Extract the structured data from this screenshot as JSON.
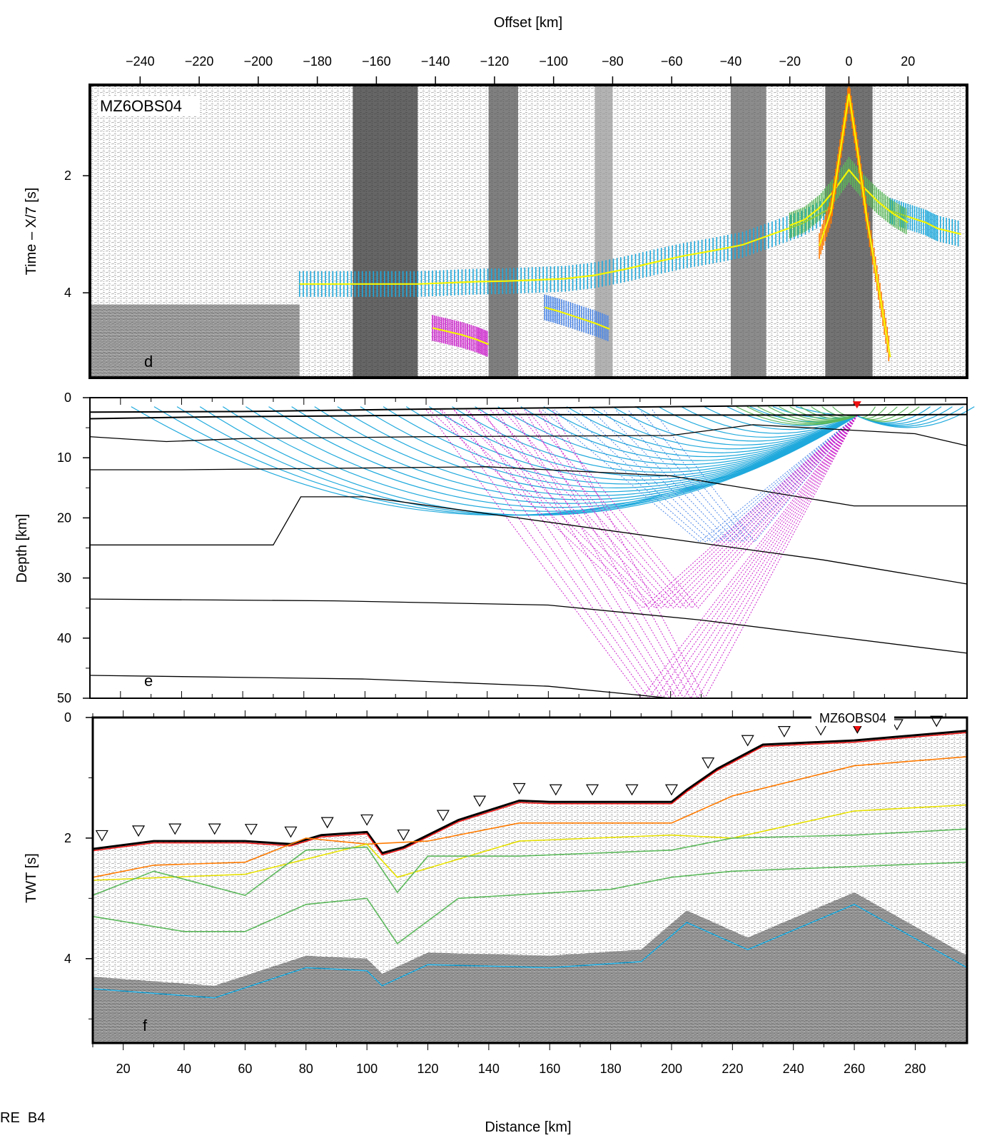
{
  "figure_label": "RE  B4",
  "colors": {
    "frame": "#000000",
    "cyan_rays": "#1fa9dc",
    "blue_rays": "#4a86e8",
    "magenta_rays": "#cc22cc",
    "green_rays": "#5cb85c",
    "pick_yellow": "#f5f500",
    "red_marker": "#ee1111"
  },
  "chart_data": [
    {
      "panel": "d",
      "type": "scatter",
      "station": "MZ6OBS04",
      "xlabel": "Offset [km]",
      "ylabel": "Time – X/7 [s]",
      "xlim": [
        -257,
        40
      ],
      "ylim": [
        5.45,
        0.45
      ],
      "xticks": [
        -240,
        -220,
        -200,
        -180,
        -160,
        -140,
        -120,
        -100,
        -80,
        -60,
        -40,
        -20,
        0,
        20
      ],
      "yticks": [
        2,
        4
      ],
      "series": [
        {
          "color": "cyan",
          "x": [
            -186,
            -176,
            -166,
            -156,
            -146,
            -136,
            -126,
            -116,
            -106,
            -96,
            -86,
            -76,
            -66,
            -56,
            -46,
            -36,
            -26,
            -16,
            -6
          ],
          "y": [
            3.85,
            3.85,
            3.85,
            3.85,
            3.85,
            3.83,
            3.81,
            3.8,
            3.78,
            3.76,
            3.7,
            3.6,
            3.48,
            3.37,
            3.28,
            3.18,
            3.0,
            2.82,
            2.55
          ]
        },
        {
          "color": "cyan",
          "x": [
            14,
            20,
            26,
            30,
            38
          ],
          "y": [
            2.6,
            2.7,
            2.8,
            2.9,
            3.0
          ]
        },
        {
          "color": "green",
          "x": [
            -20,
            -15,
            -10,
            -5,
            0,
            5,
            10,
            15,
            20
          ],
          "y": [
            2.85,
            2.75,
            2.55,
            2.25,
            1.9,
            2.2,
            2.45,
            2.65,
            2.8
          ]
        },
        {
          "color": "orange",
          "x": [
            -10,
            -6,
            -3,
            0,
            3,
            6,
            10,
            14
          ],
          "y": [
            3.2,
            2.6,
            1.6,
            0.6,
            1.6,
            2.7,
            3.9,
            5.1
          ]
        },
        {
          "color": "blue",
          "x": [
            -103,
            -98,
            -92,
            -86,
            -81
          ],
          "y": [
            4.25,
            4.32,
            4.42,
            4.52,
            4.62
          ]
        },
        {
          "color": "magenta",
          "x": [
            -141,
            -136,
            -131,
            -126,
            -122
          ],
          "y": [
            4.6,
            4.66,
            4.72,
            4.8,
            4.88
          ]
        }
      ]
    },
    {
      "panel": "e",
      "type": "line",
      "xlabel": "",
      "ylabel": "Depth [km]",
      "xlim": [
        10,
        297
      ],
      "ylim": [
        50,
        0
      ],
      "yticks": [
        0,
        10,
        20,
        30,
        40,
        50
      ],
      "station_position_km": 261,
      "station_depth_km": 1.2,
      "series": [
        {
          "x": [
            10,
            60,
            120,
            180,
            240,
            297
          ],
          "y": [
            2.4,
            2.3,
            1.9,
            1.6,
            1.3,
            1.1
          ]
        },
        {
          "x": [
            10,
            50,
            100,
            150,
            200,
            260,
            297
          ],
          "y": [
            3.5,
            3.2,
            3.0,
            2.8,
            2.9,
            2.9,
            2.8
          ]
        },
        {
          "x": [
            10,
            35,
            60,
            120,
            200,
            227,
            280,
            297
          ],
          "y": [
            6.5,
            7.3,
            6.8,
            6.5,
            6.3,
            4.5,
            6.0,
            8.0
          ]
        },
        {
          "x": [
            10,
            40,
            80,
            140,
            200,
            260,
            297
          ],
          "y": [
            12.0,
            12.0,
            11.8,
            11.5,
            13.0,
            18.0,
            18.0
          ]
        },
        {
          "x": [
            10,
            70,
            79,
            100,
            150,
            200,
            250,
            297
          ],
          "y": [
            24.5,
            24.5,
            16.5,
            16.5,
            20.0,
            23.5,
            27.0,
            31.0
          ]
        },
        {
          "x": [
            10,
            90,
            160,
            210,
            297
          ],
          "y": [
            33.5,
            33.8,
            34.5,
            37.0,
            42.5
          ]
        },
        {
          "x": [
            10,
            100,
            160,
            200,
            297
          ],
          "y": [
            46.2,
            46.8,
            48.0,
            50.0,
            50.0
          ]
        }
      ]
    },
    {
      "panel": "f",
      "type": "line",
      "station": "MZ6OBS04",
      "xlabel": "Distance [km]",
      "ylabel": "TWT [s]",
      "xlim": [
        10,
        297
      ],
      "ylim": [
        5.4,
        0
      ],
      "xticks": [
        20,
        40,
        60,
        80,
        100,
        120,
        140,
        160,
        180,
        200,
        220,
        240,
        260,
        280
      ],
      "yticks": [
        0,
        2,
        4
      ],
      "station_position_km": 261,
      "obs_positions_km": [
        13,
        25,
        37,
        50,
        62,
        75,
        87,
        100,
        112,
        125,
        137,
        150,
        162,
        174,
        187,
        200,
        212,
        225,
        237,
        249,
        261,
        274,
        287
      ],
      "series": [
        {
          "color": "red",
          "x": [
            10,
            30,
            60,
            75,
            85,
            100,
            105,
            112,
            130,
            150,
            160,
            200,
            205,
            215,
            230,
            260,
            297
          ],
          "y": [
            2.18,
            2.05,
            2.05,
            2.1,
            1.95,
            1.9,
            2.25,
            2.15,
            1.7,
            1.38,
            1.4,
            1.4,
            1.2,
            0.85,
            0.45,
            0.38,
            0.22
          ]
        },
        {
          "color": "orange",
          "x": [
            10,
            30,
            60,
            80,
            100,
            120,
            150,
            200,
            220,
            260,
            297
          ],
          "y": [
            2.65,
            2.45,
            2.4,
            2.0,
            2.1,
            2.05,
            1.75,
            1.75,
            1.3,
            0.8,
            0.65
          ]
        },
        {
          "color": "yellow",
          "x": [
            10,
            60,
            100,
            110,
            150,
            200,
            220,
            260,
            297
          ],
          "y": [
            2.7,
            2.6,
            2.1,
            2.65,
            2.05,
            1.95,
            2.0,
            1.55,
            1.45
          ]
        },
        {
          "color": "green",
          "x": [
            10,
            30,
            60,
            80,
            100,
            110,
            120,
            150,
            200,
            220,
            260,
            297
          ],
          "y": [
            2.95,
            2.55,
            2.95,
            2.2,
            2.15,
            2.9,
            2.3,
            2.3,
            2.2,
            2.0,
            1.95,
            1.85
          ]
        },
        {
          "color": "green",
          "x": [
            10,
            40,
            60,
            80,
            100,
            110,
            130,
            180,
            200,
            220,
            297
          ],
          "y": [
            3.3,
            3.55,
            3.55,
            3.1,
            3.0,
            3.75,
            3.0,
            2.85,
            2.65,
            2.55,
            2.4
          ]
        },
        {
          "color": "cyan",
          "x": [
            10,
            50,
            80,
            100,
            105,
            120,
            160,
            190,
            205,
            225,
            260,
            297
          ],
          "y": [
            4.5,
            4.65,
            4.15,
            4.2,
            4.45,
            4.1,
            4.15,
            4.05,
            3.4,
            3.85,
            3.1,
            4.15
          ]
        }
      ]
    }
  ]
}
